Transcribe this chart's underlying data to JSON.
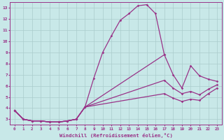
{
  "color": "#993388",
  "bg_color": "#c8e8e8",
  "grid_color": "#aacccc",
  "xlabel": "Windchill (Refroidissement éolien,°C)",
  "ylim": [
    2.5,
    13.5
  ],
  "xlim": [
    -0.5,
    23.5
  ],
  "yticks": [
    3,
    4,
    5,
    6,
    7,
    8,
    9,
    10,
    11,
    12,
    13
  ],
  "xticks": [
    0,
    1,
    2,
    3,
    4,
    5,
    6,
    7,
    8,
    9,
    10,
    11,
    12,
    13,
    14,
    15,
    16,
    17,
    18,
    19,
    20,
    21,
    22,
    23
  ],
  "line_peak": {
    "x": [
      0,
      1,
      2,
      3,
      4,
      5,
      6,
      7,
      8,
      9,
      10,
      11,
      12,
      13,
      14,
      15,
      16,
      17
    ],
    "y": [
      3.8,
      3.0,
      2.85,
      2.85,
      2.75,
      2.75,
      2.85,
      3.0,
      4.1,
      6.7,
      9.0,
      10.5,
      11.9,
      12.5,
      13.2,
      13.3,
      12.5,
      8.8
    ]
  },
  "line_upper": {
    "x": [
      0,
      1,
      2,
      3,
      4,
      5,
      6,
      7,
      8,
      17,
      18,
      19,
      20,
      21,
      22,
      23
    ],
    "y": [
      3.8,
      3.0,
      2.85,
      2.85,
      2.75,
      2.75,
      2.85,
      3.0,
      4.1,
      8.8,
      7.0,
      5.8,
      7.8,
      6.9,
      6.6,
      6.4
    ]
  },
  "line_mid": {
    "x": [
      0,
      1,
      2,
      3,
      4,
      5,
      6,
      7,
      8,
      17,
      18,
      19,
      20,
      21,
      22,
      23
    ],
    "y": [
      3.8,
      3.0,
      2.85,
      2.85,
      2.75,
      2.75,
      2.85,
      3.0,
      4.1,
      6.5,
      5.8,
      5.3,
      5.5,
      5.2,
      5.7,
      6.1
    ]
  },
  "line_lower": {
    "x": [
      0,
      1,
      2,
      3,
      4,
      5,
      6,
      7,
      8,
      17,
      18,
      19,
      20,
      21,
      22,
      23
    ],
    "y": [
      3.8,
      3.0,
      2.85,
      2.85,
      2.75,
      2.75,
      2.85,
      3.0,
      4.1,
      5.3,
      4.9,
      4.6,
      4.8,
      4.7,
      5.3,
      5.8
    ]
  }
}
